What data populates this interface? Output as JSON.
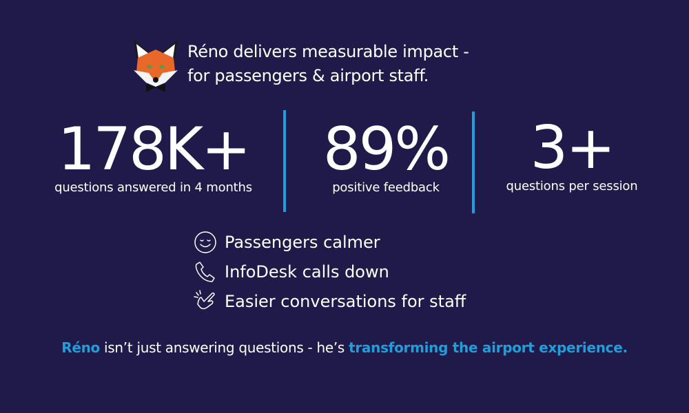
{
  "header": {
    "logo_icon": "fox-mascot-icon",
    "line1": "Réno delivers measurable impact -",
    "line2": "for passengers & airport staff."
  },
  "stats": [
    {
      "value": "178K+",
      "label": "questions answered in 4 months"
    },
    {
      "value": "89%",
      "label": "positive feedback"
    },
    {
      "value": "3+",
      "label": "questions per session"
    }
  ],
  "benefits": [
    {
      "icon": "smiley-face-icon",
      "label": "Passengers calmer"
    },
    {
      "icon": "phone-icon",
      "label": "InfoDesk calls down"
    },
    {
      "icon": "hand-snap-icon",
      "label": "Easier conversations for staff"
    }
  ],
  "footer": {
    "name": "Réno",
    "middle": " isn’t just answering questions - he’s ",
    "emphasis": "transforming the airport experience."
  },
  "colors": {
    "background": "#1f1a49",
    "accent": "#1e9fdc"
  }
}
